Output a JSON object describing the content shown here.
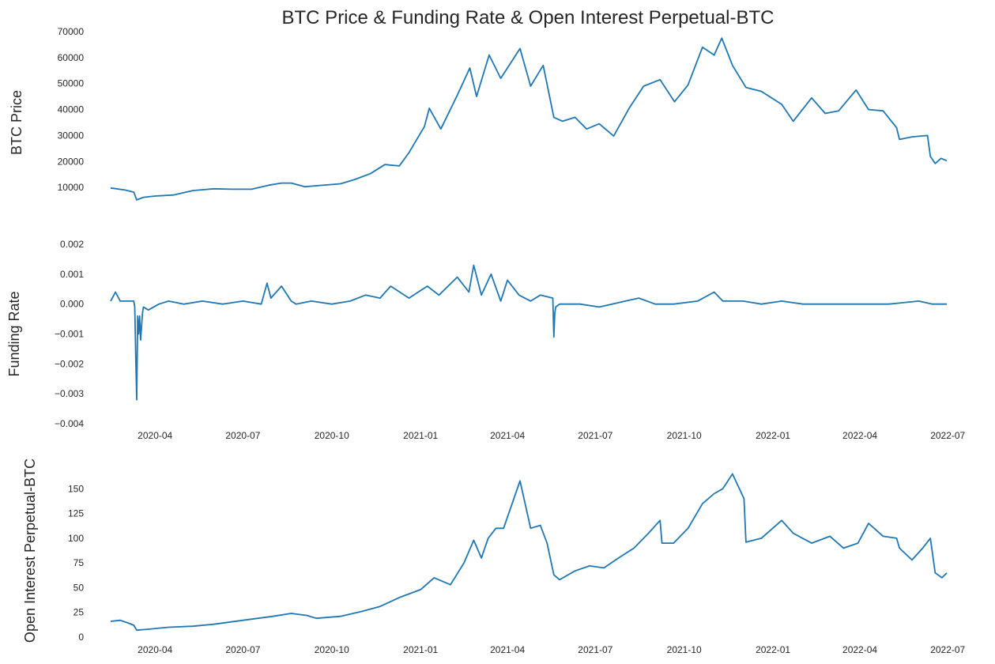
{
  "figure": {
    "title": "BTC Price & Funding Rate & Open Interest Perpetual-BTC"
  },
  "colors": {
    "series": "#1f77b4",
    "text": "#262626",
    "background": "#ffffff"
  },
  "chart_data": [
    {
      "type": "line",
      "ylabel": "BTC  Price",
      "xlabel": "",
      "grid": false,
      "xlim": [
        "2020-02-15",
        "2022-06-30"
      ],
      "ylim": [
        0,
        70000
      ],
      "yticks": [
        10000,
        20000,
        30000,
        40000,
        50000,
        60000,
        70000
      ],
      "xticks": [],
      "series": [
        {
          "x": [
            "2020-02-15",
            "2020-03-01",
            "2020-03-10",
            "2020-03-13",
            "2020-03-20",
            "2020-04-01",
            "2020-04-20",
            "2020-05-10",
            "2020-06-01",
            "2020-06-20",
            "2020-07-10",
            "2020-07-28",
            "2020-08-10",
            "2020-08-20",
            "2020-09-03",
            "2020-09-20",
            "2020-10-10",
            "2020-10-25",
            "2020-11-10",
            "2020-11-25",
            "2020-12-10",
            "2020-12-20",
            "2021-01-05",
            "2021-01-10",
            "2021-01-22",
            "2021-02-08",
            "2021-02-21",
            "2021-02-28",
            "2021-03-13",
            "2021-03-25",
            "2021-04-14",
            "2021-04-25",
            "2021-05-08",
            "2021-05-19",
            "2021-05-28",
            "2021-06-10",
            "2021-06-22",
            "2021-07-05",
            "2021-07-20",
            "2021-08-05",
            "2021-08-20",
            "2021-09-06",
            "2021-09-21",
            "2021-10-05",
            "2021-10-20",
            "2021-11-01",
            "2021-11-09",
            "2021-11-20",
            "2021-12-04",
            "2021-12-20",
            "2022-01-10",
            "2022-01-22",
            "2022-02-10",
            "2022-02-24",
            "2022-03-10",
            "2022-03-28",
            "2022-04-10",
            "2022-04-25",
            "2022-05-09",
            "2022-05-12",
            "2022-05-25",
            "2022-06-10",
            "2022-06-13",
            "2022-06-18",
            "2022-06-24",
            "2022-06-30"
          ],
          "y": [
            9800,
            9000,
            8200,
            5200,
            6200,
            6700,
            7100,
            8800,
            9500,
            9300,
            9300,
            10900,
            11700,
            11700,
            10300,
            10800,
            11400,
            13100,
            15300,
            18800,
            18300,
            23400,
            33500,
            40500,
            32500,
            45500,
            56000,
            45000,
            61000,
            52000,
            63500,
            49000,
            57000,
            37000,
            35500,
            37000,
            32500,
            34500,
            29800,
            40500,
            49000,
            51500,
            43000,
            49500,
            64000,
            61000,
            67500,
            57000,
            48500,
            47000,
            42000,
            35500,
            44500,
            38500,
            39500,
            47500,
            40000,
            39500,
            33000,
            28500,
            29500,
            30000,
            22000,
            19200,
            21200,
            20300
          ]
        }
      ]
    },
    {
      "type": "line",
      "ylabel": "Funding Rate",
      "xlabel": "",
      "grid": false,
      "xlim": [
        "2020-02-15",
        "2022-06-30"
      ],
      "ylim": [
        -0.004,
        0.002
      ],
      "yticks": [
        -0.004,
        -0.003,
        -0.002,
        -0.001,
        0.0,
        0.001,
        0.002
      ],
      "ytick_labels": [
        "−0.004",
        "−0.003",
        "−0.002",
        "−0.001",
        "0.000",
        "0.001",
        "0.002"
      ],
      "xticks": [
        "2020-04-01",
        "2020-07-01",
        "2020-10-01",
        "2021-01-01",
        "2021-04-01",
        "2021-07-01",
        "2021-10-01",
        "2022-01-01",
        "2022-04-01",
        "2022-07-01"
      ],
      "xtick_labels": [
        "2020-04",
        "2020-07",
        "2020-10",
        "2021-01",
        "2021-04",
        "2021-07",
        "2021-10",
        "2022-01",
        "2022-04",
        "2022-07"
      ],
      "series": [
        {
          "x": [
            "2020-02-15",
            "2020-02-20",
            "2020-02-25",
            "2020-03-05",
            "2020-03-10",
            "2020-03-11",
            "2020-03-12",
            "2020-03-13",
            "2020-03-14",
            "2020-03-15",
            "2020-03-16",
            "2020-03-17",
            "2020-03-19",
            "2020-03-20",
            "2020-03-25",
            "2020-04-05",
            "2020-04-15",
            "2020-05-01",
            "2020-05-20",
            "2020-06-10",
            "2020-07-01",
            "2020-07-20",
            "2020-07-26",
            "2020-07-30",
            "2020-08-10",
            "2020-08-20",
            "2020-08-25",
            "2020-09-10",
            "2020-10-01",
            "2020-10-20",
            "2020-11-05",
            "2020-11-20",
            "2020-12-01",
            "2020-12-20",
            "2021-01-08",
            "2021-01-20",
            "2021-02-08",
            "2021-02-20",
            "2021-02-25",
            "2021-03-05",
            "2021-03-15",
            "2021-03-25",
            "2021-04-01",
            "2021-04-13",
            "2021-04-25",
            "2021-05-05",
            "2021-05-18",
            "2021-05-19",
            "2021-05-20",
            "2021-05-21",
            "2021-05-25",
            "2021-06-15",
            "2021-07-05",
            "2021-08-01",
            "2021-08-15",
            "2021-09-01",
            "2021-09-20",
            "2021-10-15",
            "2021-11-01",
            "2021-11-10",
            "2021-12-01",
            "2021-12-20",
            "2022-01-10",
            "2022-02-01",
            "2022-03-01",
            "2022-04-01",
            "2022-05-01",
            "2022-06-01",
            "2022-06-15",
            "2022-06-30"
          ],
          "y": [
            0.0001,
            0.0004,
            0.0001,
            0.0001,
            0.0001,
            -0.0001,
            -0.0018,
            -0.0032,
            -0.0004,
            -0.001,
            -0.0004,
            -0.0012,
            -0.0003,
            -0.0001,
            -0.0002,
            0.0,
            0.0001,
            0.0,
            0.0001,
            0.0,
            0.0001,
            0.0,
            0.0007,
            0.0002,
            0.0006,
            0.0001,
            0.0,
            0.0001,
            0.0,
            0.0001,
            0.0003,
            0.0002,
            0.0006,
            0.0002,
            0.0006,
            0.0003,
            0.0009,
            0.0004,
            0.0013,
            0.0003,
            0.001,
            0.0001,
            0.0008,
            0.0003,
            0.0001,
            0.0003,
            0.0002,
            -0.0011,
            -0.0003,
            -0.0001,
            0.0,
            0.0,
            -0.0001,
            0.0001,
            0.0002,
            0.0,
            0.0,
            0.0001,
            0.0004,
            0.0001,
            0.0001,
            0.0,
            0.0001,
            0.0,
            0.0,
            0.0,
            0.0,
            0.0001,
            0.0,
            0.0
          ]
        }
      ]
    },
    {
      "type": "line",
      "ylabel": "Open Interest Perpetual-BTC",
      "xlabel": "",
      "grid": false,
      "xlim": [
        "2020-02-15",
        "2022-06-30"
      ],
      "ylim": [
        0,
        175
      ],
      "yticks": [
        0,
        25,
        50,
        75,
        100,
        125,
        150
      ],
      "xticks": [
        "2020-04-01",
        "2020-07-01",
        "2020-10-01",
        "2021-01-01",
        "2021-04-01",
        "2021-07-01",
        "2021-10-01",
        "2022-01-01",
        "2022-04-01",
        "2022-07-01"
      ],
      "xtick_labels": [
        "2020-04",
        "2020-07",
        "2020-10",
        "2021-01",
        "2021-04",
        "2021-07",
        "2021-10",
        "2022-01",
        "2022-04",
        "2022-07"
      ],
      "series": [
        {
          "x": [
            "2020-02-15",
            "2020-02-25",
            "2020-03-05",
            "2020-03-10",
            "2020-03-13",
            "2020-03-25",
            "2020-04-15",
            "2020-05-10",
            "2020-06-01",
            "2020-07-01",
            "2020-08-01",
            "2020-08-20",
            "2020-09-05",
            "2020-09-15",
            "2020-10-10",
            "2020-11-01",
            "2020-11-20",
            "2020-12-10",
            "2021-01-01",
            "2021-01-15",
            "2021-02-01",
            "2021-02-15",
            "2021-02-25",
            "2021-03-05",
            "2021-03-12",
            "2021-03-20",
            "2021-03-28",
            "2021-04-14",
            "2021-04-25",
            "2021-05-05",
            "2021-05-12",
            "2021-05-19",
            "2021-05-25",
            "2021-06-10",
            "2021-06-25",
            "2021-07-10",
            "2021-07-25",
            "2021-08-10",
            "2021-08-25",
            "2021-09-06",
            "2021-09-08",
            "2021-09-20",
            "2021-10-05",
            "2021-10-20",
            "2021-11-01",
            "2021-11-10",
            "2021-11-20",
            "2021-12-02",
            "2021-12-04",
            "2021-12-20",
            "2022-01-10",
            "2022-01-22",
            "2022-02-10",
            "2022-03-01",
            "2022-03-15",
            "2022-03-30",
            "2022-04-10",
            "2022-04-25",
            "2022-05-09",
            "2022-05-12",
            "2022-05-25",
            "2022-06-05",
            "2022-06-13",
            "2022-06-18",
            "2022-06-25",
            "2022-06-30"
          ],
          "y": [
            16,
            17,
            14,
            12,
            7,
            8,
            10,
            11,
            13,
            17,
            21,
            24,
            22,
            19,
            21,
            26,
            31,
            40,
            48,
            60,
            53,
            75,
            98,
            80,
            100,
            110,
            110,
            158,
            110,
            113,
            95,
            63,
            58,
            67,
            72,
            70,
            80,
            90,
            105,
            118,
            95,
            95,
            110,
            135,
            145,
            150,
            165,
            140,
            96,
            100,
            118,
            105,
            95,
            102,
            90,
            95,
            115,
            102,
            100,
            90,
            78,
            90,
            100,
            65,
            60,
            65
          ]
        }
      ]
    }
  ]
}
